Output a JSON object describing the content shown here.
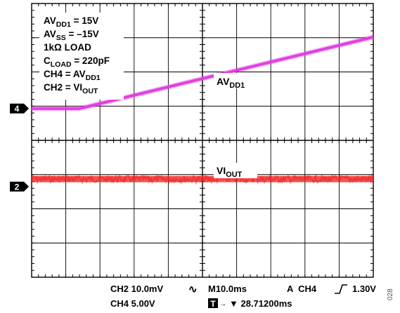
{
  "chart_data": {
    "type": "line",
    "title": "",
    "xlabel": "",
    "ylabel": "",
    "grid": true,
    "x_divisions": 10,
    "y_divisions": 8,
    "xlim": [
      0,
      10
    ],
    "ylim": [
      -4,
      4
    ],
    "conditions": [
      {
        "pre": "AV",
        "sub": "DD1",
        "post": " = 15V"
      },
      {
        "pre": "AV",
        "sub": "SS",
        "post": " = –15V"
      },
      {
        "pre": "1kΩ LOAD",
        "sub": "",
        "post": ""
      },
      {
        "pre": "C",
        "sub": "LOAD",
        "post": " = 220pF"
      },
      {
        "pre": "CH4 = AV",
        "sub": "DD1",
        "post": ""
      },
      {
        "pre": "CH2 = VI",
        "sub": "OUT",
        "post": ""
      }
    ],
    "channel_markers": [
      {
        "label": "4",
        "y": 0.93
      },
      {
        "label": "2",
        "y": -1.35
      }
    ],
    "series": [
      {
        "name_pre": "AV",
        "name_sub": "DD1",
        "color": "#e040e0",
        "channel": "4",
        "x": [
          0,
          1.4,
          10
        ],
        "y": [
          0.93,
          0.93,
          3.02
        ]
      },
      {
        "name_pre": "VI",
        "name_sub": "OUT",
        "color": "#ee1c1c",
        "channel": "2",
        "noisy": true,
        "x": [
          0,
          10
        ],
        "y": [
          -1.13,
          -1.13
        ]
      }
    ],
    "footer": {
      "ch2_scale": "CH2 10.0mV",
      "ch4_scale": "CH4 5.00V",
      "coupling_symbol": "∿",
      "timebase": "M10.0ms",
      "trigger": "A  CH4",
      "trigger_slope_symbol": "⌠",
      "trigger_level": "1.30V",
      "trigger_marker": "T",
      "trigger_position": "▼ 28.71200ms",
      "figure_id": "028"
    },
    "colors": {
      "background": "#ffffff",
      "grid": "#000000",
      "av_trace": "#e040e0",
      "vi_trace": "#ee1c1c"
    }
  }
}
